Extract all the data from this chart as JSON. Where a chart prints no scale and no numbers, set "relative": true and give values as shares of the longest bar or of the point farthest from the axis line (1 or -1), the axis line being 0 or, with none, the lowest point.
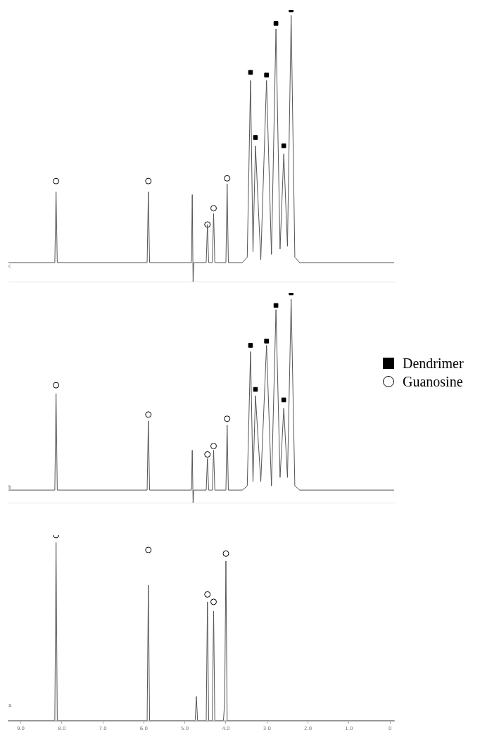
{
  "chart_data": [
    {
      "type": "line",
      "relative": true,
      "xlim": [
        9.3,
        -0.1
      ],
      "tick_labels": false,
      "grid": false,
      "legend": false,
      "annotations": [
        "c"
      ],
      "series": [
        {
          "color": "#555555",
          "marker": "none",
          "x": [
            9.3,
            8.17,
            8.14,
            8.11,
            5.92,
            5.89,
            5.86,
            4.84,
            4.82,
            4.8,
            4.78,
            4.48,
            4.45,
            4.42,
            4.33,
            4.3,
            4.27,
            4.0,
            3.97,
            3.94,
            3.6,
            3.48,
            3.4,
            3.34,
            3.28,
            3.15,
            3.01,
            2.89,
            2.78,
            2.68,
            2.59,
            2.5,
            2.41,
            2.32,
            2.2,
            -0.1
          ],
          "values": [
            0.07,
            0.07,
            0.33,
            0.07,
            0.07,
            0.33,
            0.07,
            0.07,
            0.32,
            0,
            0.07,
            0.07,
            0.21,
            0.07,
            0.07,
            0.25,
            0.07,
            0.07,
            0.36,
            0.07,
            0.07,
            0.09,
            0.74,
            0.11,
            0.5,
            0.08,
            0.74,
            0.1,
            0.93,
            0.12,
            0.47,
            0.13,
            0.98,
            0.09,
            0.07,
            0.07
          ]
        },
        {
          "type": "scatter",
          "color": "#000000",
          "marker": "square",
          "x": [
            3.4,
            3.28,
            3.01,
            2.78,
            2.59,
            2.41
          ],
          "values": [
            0.77,
            0.53,
            0.76,
            0.95,
            0.5,
            1
          ]
        },
        {
          "type": "scatter",
          "color": "#000000",
          "marker": "circle",
          "x": [
            8.14,
            5.89,
            4.45,
            4.3,
            3.97
          ],
          "values": [
            0.37,
            0.37,
            0.21,
            0.27,
            0.38
          ]
        }
      ]
    },
    {
      "type": "line",
      "relative": true,
      "xlim": [
        9.3,
        -0.1
      ],
      "tick_labels": false,
      "grid": false,
      "legend": "right",
      "annotations": [
        "b"
      ],
      "series": [
        {
          "color": "#555555",
          "marker": "none",
          "x": [
            9.3,
            8.17,
            8.14,
            8.11,
            5.92,
            5.89,
            5.86,
            4.84,
            4.82,
            4.8,
            4.78,
            4.48,
            4.45,
            4.42,
            4.33,
            4.3,
            4.27,
            4.0,
            3.97,
            3.94,
            3.6,
            3.48,
            3.4,
            3.34,
            3.28,
            3.15,
            3.01,
            2.89,
            2.78,
            2.68,
            2.59,
            2.5,
            2.41,
            2.32,
            2.2,
            -0.1
          ],
          "values": [
            0.06,
            0.06,
            0.52,
            0.06,
            0.06,
            0.39,
            0.06,
            0.06,
            0.25,
            0,
            0.06,
            0.06,
            0.21,
            0.06,
            0.06,
            0.25,
            0.06,
            0.06,
            0.37,
            0.06,
            0.06,
            0.08,
            0.72,
            0.1,
            0.51,
            0.1,
            0.75,
            0.08,
            0.92,
            0.12,
            0.45,
            0.12,
            0.97,
            0.08,
            0.06,
            0.06
          ]
        },
        {
          "type": "scatter",
          "name": "Dendrimer",
          "color": "#000000",
          "marker": "square",
          "x": [
            3.4,
            3.28,
            3.01,
            2.78,
            2.59,
            2.41
          ],
          "values": [
            0.75,
            0.54,
            0.77,
            0.94,
            0.49,
            1
          ]
        },
        {
          "type": "scatter",
          "name": "Guanosine",
          "color": "#000000",
          "marker": "circle",
          "x": [
            8.14,
            5.89,
            4.45,
            4.3,
            3.97
          ],
          "values": [
            0.56,
            0.42,
            0.23,
            0.27,
            0.4
          ]
        }
      ]
    },
    {
      "type": "line",
      "relative": true,
      "xlim": [
        9.3,
        -0.1
      ],
      "tick_labels": "x",
      "grid": false,
      "legend": false,
      "annotations": [
        "a"
      ],
      "xticks": [
        {
          "value": 9,
          "label": "9.0"
        },
        {
          "value": 8,
          "label": "8.0"
        },
        {
          "value": 7,
          "label": "7.0"
        },
        {
          "value": 6,
          "label": "6.0"
        },
        {
          "value": 5,
          "label": "5.0"
        },
        {
          "value": 4,
          "label": "4.0"
        },
        {
          "value": 3,
          "label": "3.0"
        },
        {
          "value": 2,
          "label": "2.0"
        },
        {
          "value": 1,
          "label": "1.0"
        },
        0
      ],
      "series": [
        {
          "color": "#555555",
          "marker": "none",
          "x": [
            9.3,
            8.17,
            8.14,
            8.11,
            5.92,
            5.89,
            5.86,
            4.75,
            4.72,
            4.69,
            4.48,
            4.45,
            4.42,
            4.33,
            4.3,
            4.27,
            4.06,
            4.03,
            4.0,
            3.97,
            -0.1
          ],
          "values": [
            0,
            0,
            0.96,
            0,
            0,
            0.73,
            0,
            0,
            0.13,
            0,
            0,
            0.64,
            0,
            0,
            0.59,
            0,
            0,
            0.1,
            0.86,
            0,
            0
          ]
        },
        {
          "type": "scatter",
          "color": "#000000",
          "marker": "circle",
          "x": [
            8.14,
            5.89,
            4.45,
            4.3,
            4.0
          ],
          "values": [
            1,
            0.92,
            0.68,
            0.64,
            0.9
          ]
        }
      ]
    }
  ]
}
